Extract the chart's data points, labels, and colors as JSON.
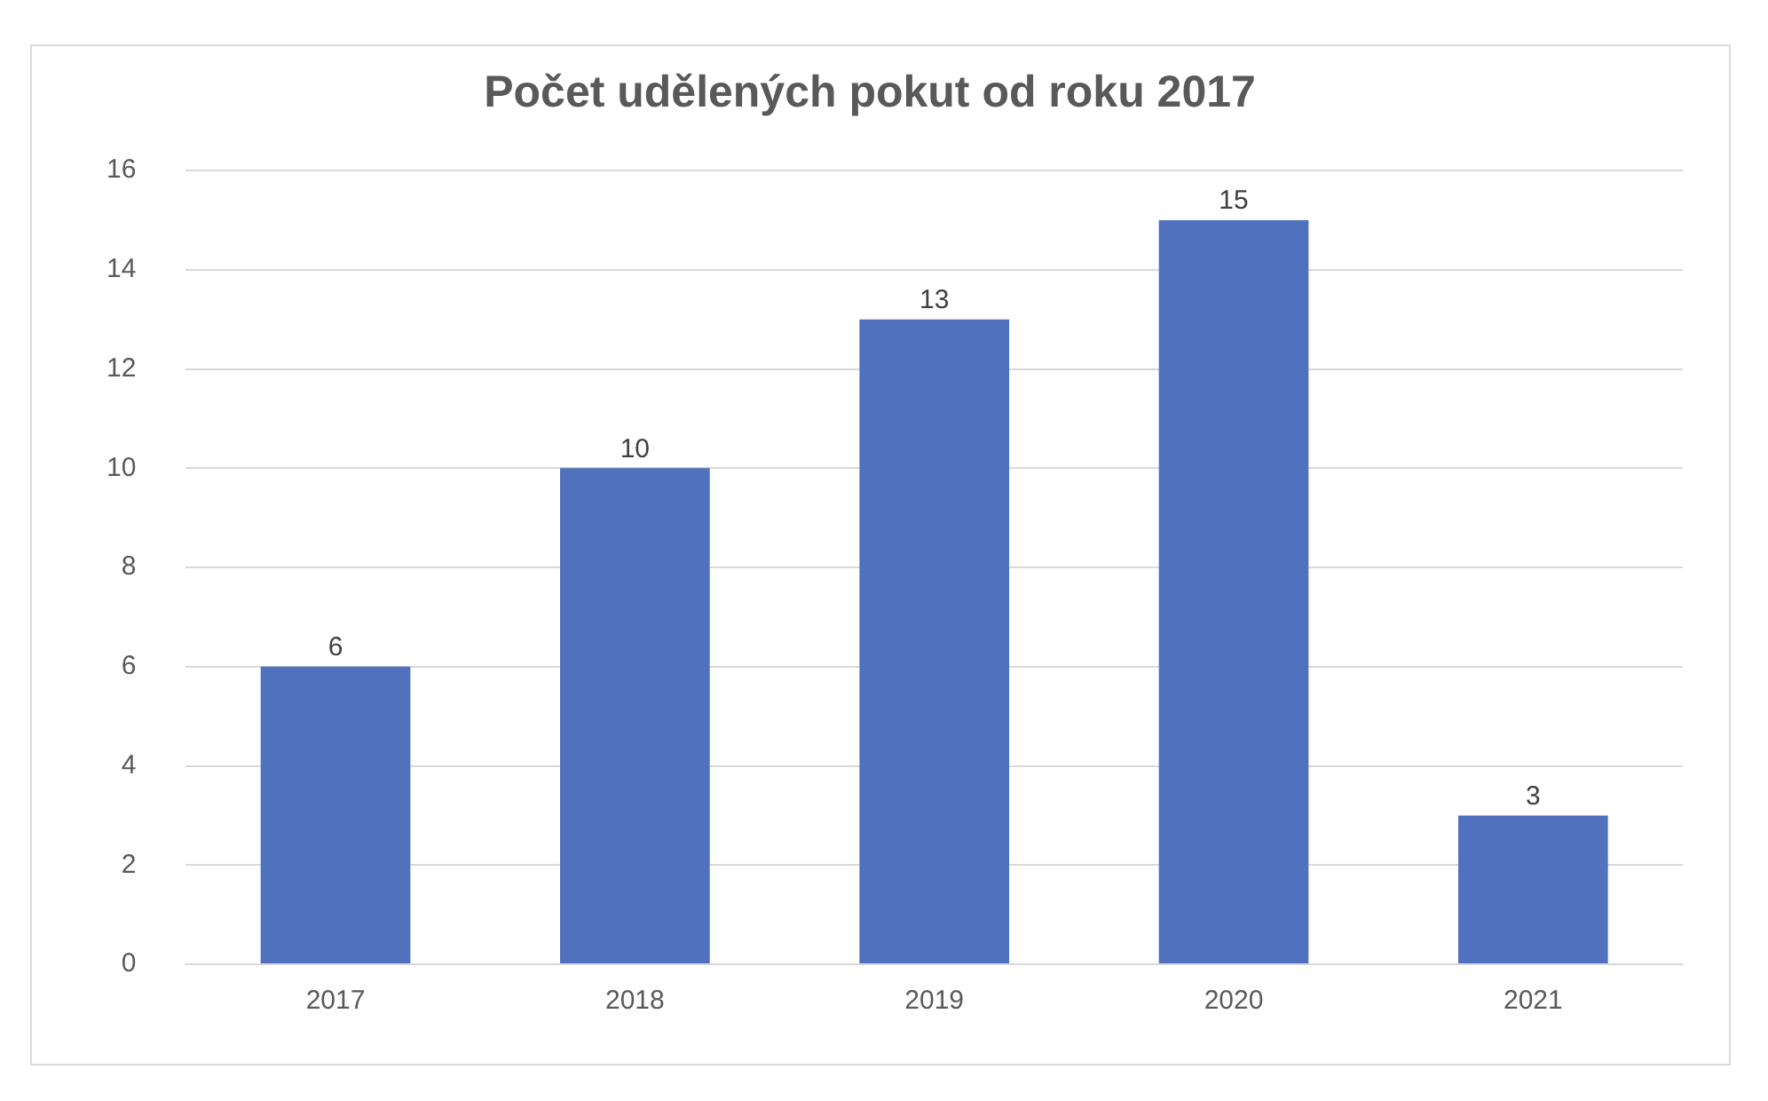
{
  "chart_data": {
    "type": "bar",
    "title": "Počet udělených pokut od roku 2017",
    "categories": [
      "2017",
      "2018",
      "2019",
      "2020",
      "2021"
    ],
    "values": [
      6,
      10,
      13,
      15,
      3
    ],
    "color": "#4f71be",
    "ylim": [
      0,
      16
    ],
    "yticks": [
      0,
      2,
      4,
      6,
      8,
      10,
      12,
      14,
      16
    ],
    "grid": "y",
    "data_labels": true
  }
}
